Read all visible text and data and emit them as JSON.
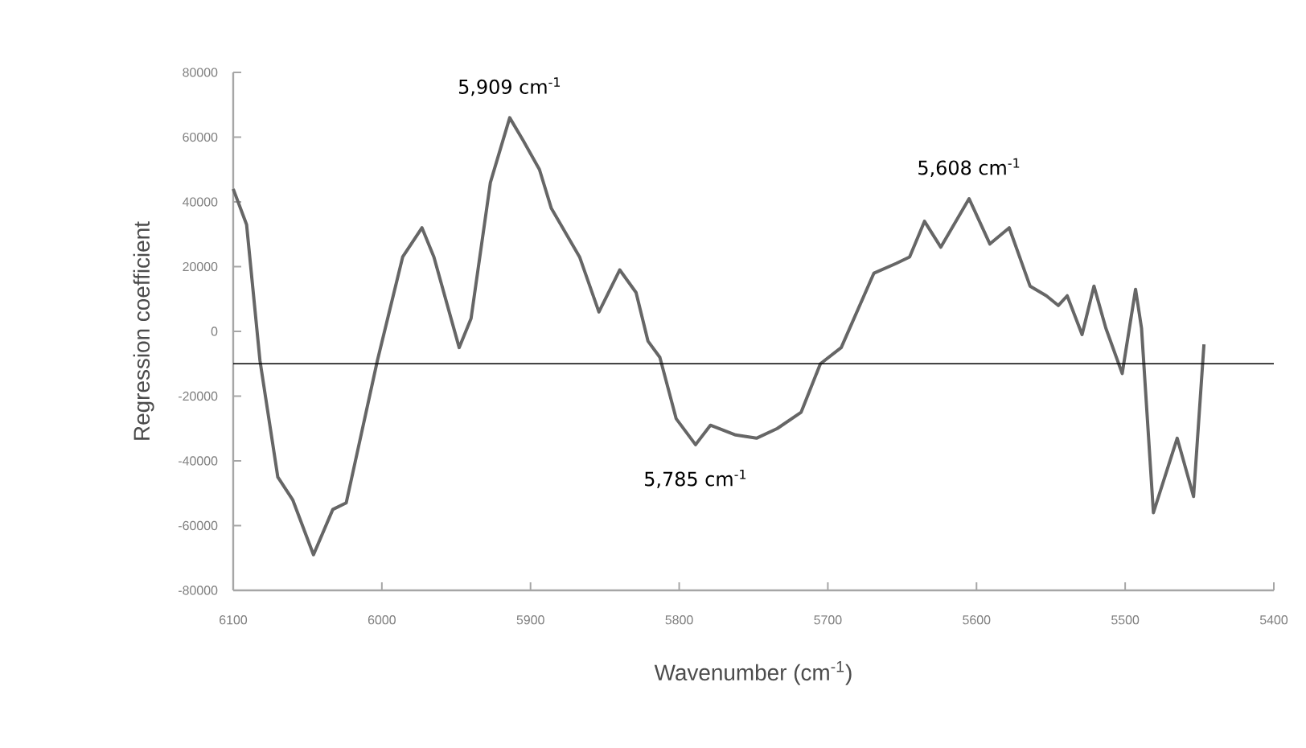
{
  "chart_data": {
    "type": "line",
    "xlabel": "Wavenumber (cm$^{-1}$)",
    "ylabel": "Regression coefficient",
    "xlim": [
      6100,
      5400
    ],
    "xticks": [
      6100,
      6000,
      5900,
      5800,
      5700,
      5600,
      5500,
      5400
    ],
    "ylim": [
      -80000,
      80000
    ],
    "yticks": [
      -80000,
      -60000,
      -40000,
      -20000,
      0,
      20000,
      40000,
      60000,
      80000
    ],
    "grid": false,
    "marker": "none",
    "line_style": "solid",
    "ref_lines": [
      {
        "axis": "y",
        "value": -10000,
        "color": "#000000"
      }
    ],
    "annotations": [
      {
        "text": "5,909 cm$^{-1}$",
        "x": 5914,
        "y": 66000
      },
      {
        "text": "5,785 cm$^{-1}$",
        "x": 5789,
        "y": -35000
      },
      {
        "text": "5,608 cm$^{-1}$",
        "x": 5605,
        "y": 41000
      }
    ],
    "series": [
      {
        "color": "#666666",
        "x": [
          6100,
          6091,
          6082,
          6070,
          6060,
          6046,
          6033,
          6024,
          6003,
          5986,
          5973,
          5965,
          5948,
          5940,
          5927,
          5914,
          5905,
          5894,
          5886,
          5867,
          5854,
          5840,
          5829,
          5821,
          5813,
          5802,
          5789,
          5779,
          5762,
          5748,
          5734,
          5718,
          5705,
          5691,
          5669,
          5654,
          5645,
          5635,
          5624,
          5605,
          5591,
          5578,
          5564,
          5553,
          5545,
          5539,
          5529,
          5521,
          5513,
          5502,
          5493,
          5489,
          5481,
          5465,
          5454,
          5447
        ],
        "values": [
          44000,
          33000,
          -9000,
          -45000,
          -52000,
          -69000,
          -55000,
          -53000,
          -9000,
          23000,
          32000,
          23000,
          -5000,
          4000,
          46000,
          66000,
          59000,
          50000,
          38000,
          23000,
          6000,
          19000,
          12000,
          -3000,
          -8000,
          -27000,
          -35000,
          -29000,
          -32000,
          -33000,
          -30000,
          -25000,
          -10000,
          -5000,
          18000,
          21000,
          23000,
          34000,
          26000,
          41000,
          27000,
          32000,
          14000,
          11000,
          8000,
          11000,
          -1000,
          14000,
          1000,
          -13000,
          13000,
          1000,
          -56000,
          -33000,
          -51000,
          -4000
        ]
      }
    ]
  }
}
